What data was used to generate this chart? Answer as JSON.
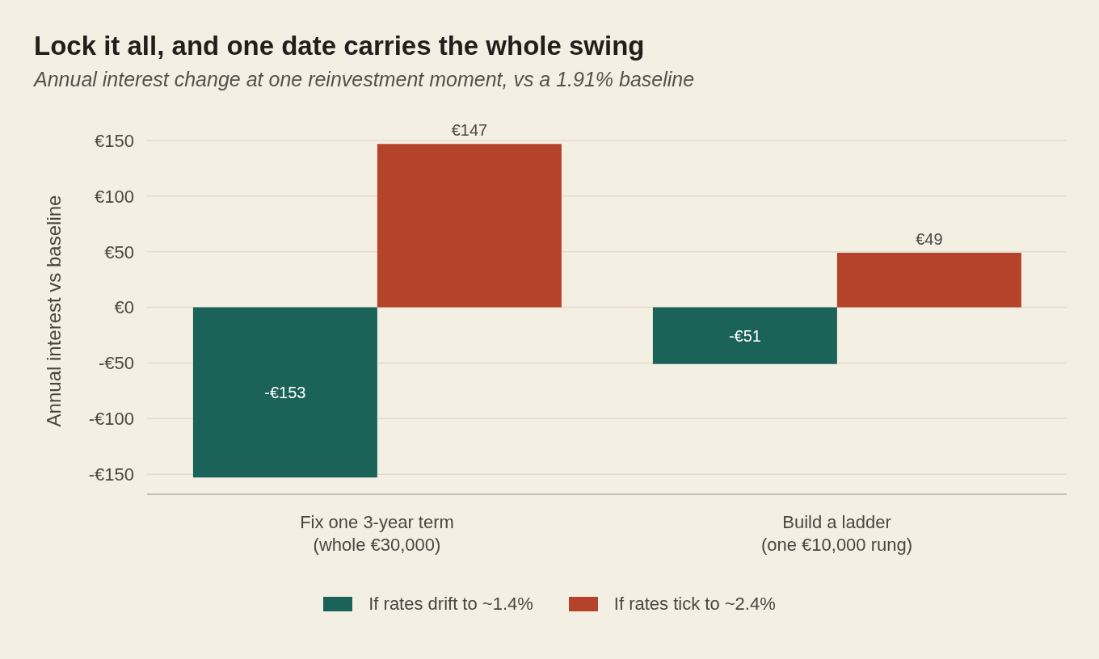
{
  "chart_data": {
    "type": "bar",
    "title": "Lock it all, and one date carries the whole swing",
    "subtitle": "Annual interest change at one reinvestment moment, vs a 1.91% baseline",
    "ylabel": "Annual interest vs baseline",
    "categories": [
      "Fix one 3-year term\n(whole €30,000)",
      "Build a ladder\n(one €10,000 rung)"
    ],
    "series": [
      {
        "name": "If rates drift to ~1.4%",
        "color": "#1b6359",
        "values": [
          -153,
          -51
        ],
        "value_labels": [
          "-€153",
          "-€51"
        ]
      },
      {
        "name": "If rates tick to ~2.4%",
        "color": "#b5432b",
        "values": [
          147,
          49
        ],
        "value_labels": [
          "€147",
          "€49"
        ]
      }
    ],
    "ylim": [
      -168,
      150
    ],
    "yticks": [
      {
        "value": -150,
        "label": "-€150"
      },
      {
        "value": -100,
        "label": "-€100"
      },
      {
        "value": -50,
        "label": "-€50"
      },
      {
        "value": 0,
        "label": "€0"
      },
      {
        "value": 50,
        "label": "€50"
      },
      {
        "value": 100,
        "label": "€100"
      },
      {
        "value": 150,
        "label": "€150"
      }
    ],
    "grid": "y",
    "legend": "bottom"
  }
}
